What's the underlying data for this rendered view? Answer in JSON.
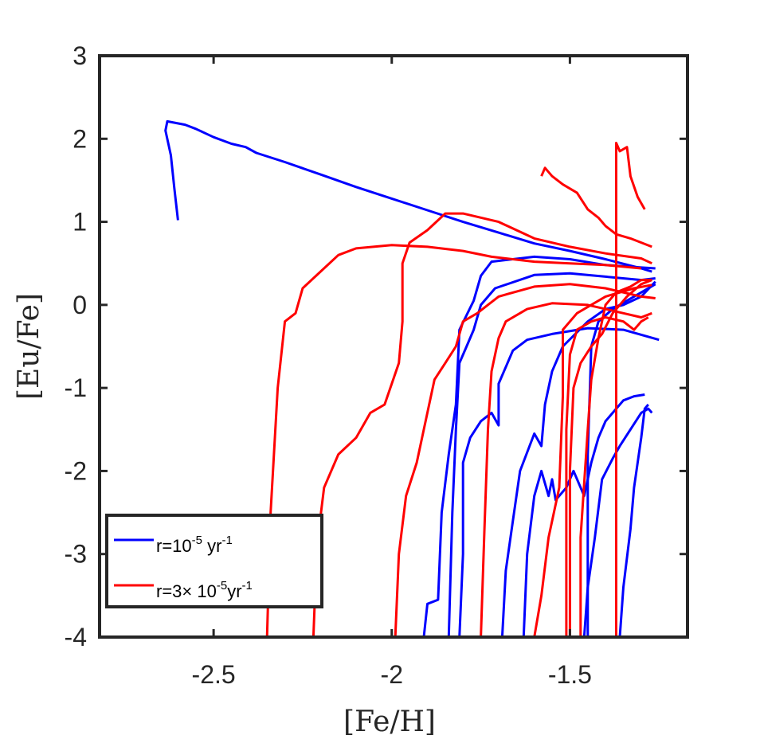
{
  "chart_data": {
    "type": "line",
    "title": "",
    "xlabel": "[Fe/H]",
    "ylabel": "[Eu/Fe]",
    "xlim": [
      -2.82,
      -1.17
    ],
    "ylim": [
      -4,
      3
    ],
    "xticks": [
      -2.5,
      -2,
      -1.5
    ],
    "xtick_labels": [
      "-2.5",
      "-2",
      "-1.5"
    ],
    "yticks": [
      -4,
      -3,
      -2,
      -1,
      0,
      1,
      2,
      3
    ],
    "ytick_labels": [
      "-4",
      "-3",
      "-2",
      "-1",
      "0",
      "1",
      "2",
      "3"
    ],
    "grid": false,
    "legend_position": "bottom-left",
    "legend": [
      {
        "base": "r=10",
        "exp1": "-5",
        "mid": " yr",
        "exp2": "-1",
        "color": "#0000ff"
      },
      {
        "base": "r=3× 10",
        "exp1": "-5",
        "mid": "yr",
        "exp2": "-1",
        "color": "#ff0000"
      }
    ],
    "series": [
      {
        "name": "r=1e-5 yr^-1",
        "color": "#0000ff",
        "tracks": [
          [
            [
              -2.6,
              1.02
            ],
            [
              -2.61,
              1.4
            ],
            [
              -2.62,
              1.8
            ],
            [
              -2.635,
              2.1
            ],
            [
              -2.63,
              2.21
            ],
            [
              -2.58,
              2.17
            ],
            [
              -2.55,
              2.12
            ],
            [
              -2.5,
              2.02
            ],
            [
              -2.45,
              1.94
            ],
            [
              -2.41,
              1.9
            ],
            [
              -2.38,
              1.83
            ],
            [
              -2.3,
              1.72
            ],
            [
              -2.2,
              1.57
            ],
            [
              -2.1,
              1.42
            ],
            [
              -2.0,
              1.28
            ],
            [
              -1.9,
              1.14
            ],
            [
              -1.8,
              1.0
            ],
            [
              -1.7,
              0.87
            ],
            [
              -1.6,
              0.74
            ],
            [
              -1.5,
              0.65
            ],
            [
              -1.4,
              0.55
            ],
            [
              -1.3,
              0.44
            ],
            [
              -1.27,
              0.4
            ]
          ],
          [
            [
              -1.91,
              -4
            ],
            [
              -1.9,
              -3.6
            ],
            [
              -1.87,
              -3.55
            ],
            [
              -1.86,
              -2.5
            ],
            [
              -1.84,
              -1.8
            ],
            [
              -1.82,
              -1.2
            ],
            [
              -1.81,
              -0.3
            ],
            [
              -1.77,
              0.05
            ],
            [
              -1.75,
              0.35
            ],
            [
              -1.72,
              0.52
            ],
            [
              -1.6,
              0.58
            ],
            [
              -1.5,
              0.55
            ],
            [
              -1.4,
              0.48
            ],
            [
              -1.3,
              0.45
            ],
            [
              -1.26,
              0.44
            ]
          ],
          [
            [
              -1.84,
              -4
            ],
            [
              -1.83,
              -2.5
            ],
            [
              -1.82,
              -1.5
            ],
            [
              -1.81,
              -0.7
            ],
            [
              -1.79,
              -0.5
            ],
            [
              -1.77,
              -0.3
            ],
            [
              -1.75,
              0.0
            ],
            [
              -1.71,
              0.2
            ],
            [
              -1.6,
              0.36
            ],
            [
              -1.5,
              0.38
            ],
            [
              -1.4,
              0.34
            ],
            [
              -1.3,
              0.3
            ],
            [
              -1.26,
              0.32
            ]
          ],
          [
            [
              -1.81,
              -4
            ],
            [
              -1.8,
              -3.0
            ],
            [
              -1.8,
              -1.9
            ],
            [
              -1.78,
              -1.6
            ],
            [
              -1.75,
              -1.4
            ],
            [
              -1.72,
              -1.3
            ],
            [
              -1.7,
              -1.45
            ],
            [
              -1.7,
              -0.95
            ],
            [
              -1.66,
              -0.55
            ],
            [
              -1.62,
              -0.42
            ],
            [
              -1.55,
              -0.35
            ],
            [
              -1.45,
              -0.28
            ],
            [
              -1.35,
              -0.3
            ],
            [
              -1.25,
              -0.42
            ]
          ],
          [
            [
              -1.69,
              -4
            ],
            [
              -1.68,
              -3.2
            ],
            [
              -1.66,
              -2.6
            ],
            [
              -1.64,
              -2.0
            ],
            [
              -1.6,
              -1.55
            ],
            [
              -1.58,
              -1.7
            ],
            [
              -1.57,
              -1.2
            ],
            [
              -1.55,
              -0.8
            ],
            [
              -1.52,
              -0.5
            ],
            [
              -1.45,
              -0.2
            ],
            [
              -1.4,
              -0.05
            ],
            [
              -1.35,
              0.0
            ],
            [
              -1.3,
              0.1
            ],
            [
              -1.26,
              0.28
            ]
          ],
          [
            [
              -1.63,
              -4
            ],
            [
              -1.62,
              -3.0
            ],
            [
              -1.6,
              -2.3
            ],
            [
              -1.58,
              -2.0
            ],
            [
              -1.56,
              -2.3
            ],
            [
              -1.55,
              -2.1
            ],
            [
              -1.54,
              -2.35
            ],
            [
              -1.51,
              -2.2
            ],
            [
              -1.49,
              -2.0
            ],
            [
              -1.46,
              -2.3
            ],
            [
              -1.44,
              -1.9
            ],
            [
              -1.42,
              -1.6
            ],
            [
              -1.4,
              -1.4
            ],
            [
              -1.38,
              -1.3
            ],
            [
              -1.35,
              -1.15
            ],
            [
              -1.32,
              -1.1
            ],
            [
              -1.29,
              -1.08
            ]
          ],
          [
            [
              -1.46,
              -4
            ],
            [
              -1.45,
              -3.4
            ],
            [
              -1.43,
              -2.8
            ],
            [
              -1.41,
              -2.1
            ],
            [
              -1.38,
              -1.85
            ],
            [
              -1.36,
              -1.7
            ],
            [
              -1.33,
              -1.5
            ],
            [
              -1.3,
              -1.3
            ],
            [
              -1.28,
              -1.25
            ],
            [
              -1.27,
              -1.3
            ]
          ],
          [
            [
              -1.36,
              -4
            ],
            [
              -1.35,
              -3.4
            ],
            [
              -1.33,
              -2.7
            ],
            [
              -1.32,
              -2.2
            ],
            [
              -1.3,
              -1.6
            ],
            [
              -1.29,
              -1.25
            ],
            [
              -1.28,
              -1.2
            ]
          ],
          [
            [
              -1.45,
              -4
            ],
            [
              -1.45,
              -1.8
            ],
            [
              -1.44,
              -0.5
            ],
            [
              -1.42,
              -0.2
            ],
            [
              -1.38,
              -0.05
            ],
            [
              -1.34,
              0.05
            ],
            [
              -1.3,
              0.15
            ],
            [
              -1.26,
              0.25
            ]
          ]
        ]
      },
      {
        "name": "r=3e-5 yr^-1",
        "color": "#ff0000",
        "tracks": [
          [
            [
              -2.35,
              -4
            ],
            [
              -2.34,
              -2.5
            ],
            [
              -2.32,
              -1.0
            ],
            [
              -2.3,
              -0.2
            ],
            [
              -2.27,
              -0.1
            ],
            [
              -2.25,
              0.2
            ],
            [
              -2.2,
              0.4
            ],
            [
              -2.15,
              0.6
            ],
            [
              -2.1,
              0.68
            ],
            [
              -2.0,
              0.72
            ],
            [
              -1.9,
              0.7
            ],
            [
              -1.8,
              0.65
            ],
            [
              -1.72,
              0.58
            ],
            [
              -1.6,
              0.52
            ],
            [
              -1.5,
              0.5
            ],
            [
              -1.4,
              0.48
            ],
            [
              -1.35,
              0.46
            ],
            [
              -1.3,
              0.44
            ]
          ],
          [
            [
              -2.22,
              -4
            ],
            [
              -2.21,
              -2.9
            ],
            [
              -2.19,
              -2.2
            ],
            [
              -2.15,
              -1.8
            ],
            [
              -2.1,
              -1.6
            ],
            [
              -2.06,
              -1.3
            ],
            [
              -2.02,
              -1.2
            ],
            [
              -1.98,
              -0.7
            ],
            [
              -1.97,
              -0.2
            ],
            [
              -1.97,
              0.5
            ],
            [
              -1.95,
              0.75
            ],
            [
              -1.9,
              0.9
            ],
            [
              -1.85,
              1.1
            ],
            [
              -1.8,
              1.1
            ],
            [
              -1.7,
              1.0
            ],
            [
              -1.6,
              0.8
            ],
            [
              -1.5,
              0.7
            ],
            [
              -1.4,
              0.62
            ],
            [
              -1.3,
              0.56
            ],
            [
              -1.27,
              0.5
            ]
          ],
          [
            [
              -1.99,
              -4
            ],
            [
              -1.98,
              -3.0
            ],
            [
              -1.96,
              -2.3
            ],
            [
              -1.93,
              -1.9
            ],
            [
              -1.91,
              -1.5
            ],
            [
              -1.88,
              -0.9
            ],
            [
              -1.85,
              -0.7
            ],
            [
              -1.82,
              -0.5
            ],
            [
              -1.8,
              -0.2
            ],
            [
              -1.76,
              -0.1
            ],
            [
              -1.7,
              0.1
            ],
            [
              -1.6,
              0.22
            ],
            [
              -1.5,
              0.25
            ],
            [
              -1.4,
              0.2
            ],
            [
              -1.3,
              0.1
            ],
            [
              -1.26,
              0.08
            ]
          ],
          [
            [
              -1.75,
              -4
            ],
            [
              -1.74,
              -2.7
            ],
            [
              -1.73,
              -1.5
            ],
            [
              -1.72,
              -0.8
            ],
            [
              -1.7,
              -0.4
            ],
            [
              -1.68,
              -0.2
            ],
            [
              -1.62,
              -0.05
            ],
            [
              -1.55,
              0.02
            ],
            [
              -1.45,
              0.0
            ],
            [
              -1.35,
              -0.1
            ],
            [
              -1.3,
              -0.15
            ],
            [
              -1.27,
              -0.1
            ]
          ],
          [
            [
              -1.6,
              -4
            ],
            [
              -1.58,
              -3.5
            ],
            [
              -1.56,
              -2.8
            ],
            [
              -1.53,
              -2.2
            ],
            [
              -1.52,
              -1.1
            ],
            [
              -1.52,
              -0.3
            ],
            [
              -1.48,
              -0.1
            ],
            [
              -1.4,
              0.1
            ],
            [
              -1.32,
              0.2
            ],
            [
              -1.27,
              0.24
            ]
          ],
          [
            [
              -1.51,
              -4
            ],
            [
              -1.51,
              -1.5
            ],
            [
              -1.5,
              -0.6
            ],
            [
              -1.48,
              -0.3
            ],
            [
              -1.44,
              -0.2
            ],
            [
              -1.4,
              -0.15
            ],
            [
              -1.35,
              -0.2
            ],
            [
              -1.32,
              -0.3
            ],
            [
              -1.3,
              -0.2
            ],
            [
              -1.28,
              -0.15
            ]
          ],
          [
            [
              -1.5,
              -4
            ],
            [
              -1.5,
              -2.0
            ],
            [
              -1.49,
              -1.0
            ],
            [
              -1.47,
              -0.7
            ],
            [
              -1.44,
              -0.5
            ],
            [
              -1.41,
              -0.35
            ],
            [
              -1.38,
              -0.1
            ],
            [
              -1.34,
              0.1
            ],
            [
              -1.3,
              0.25
            ],
            [
              -1.27,
              0.3
            ]
          ],
          [
            [
              -1.47,
              -4
            ],
            [
              -1.47,
              -2.8
            ],
            [
              -1.45,
              -1.5
            ],
            [
              -1.44,
              -0.9
            ],
            [
              -1.42,
              -0.4
            ],
            [
              -1.4,
              0.0
            ],
            [
              -1.37,
              0.15
            ],
            [
              -1.33,
              0.22
            ],
            [
              -1.3,
              0.3
            ],
            [
              -1.27,
              0.3
            ]
          ],
          [
            [
              -1.37,
              -4
            ],
            [
              -1.37,
              1.95
            ],
            [
              -1.36,
              1.85
            ],
            [
              -1.34,
              1.9
            ],
            [
              -1.33,
              1.55
            ],
            [
              -1.31,
              1.3
            ],
            [
              -1.29,
              1.15
            ]
          ],
          [
            [
              -1.58,
              1.55
            ],
            [
              -1.57,
              1.65
            ],
            [
              -1.55,
              1.55
            ],
            [
              -1.52,
              1.45
            ],
            [
              -1.48,
              1.35
            ],
            [
              -1.45,
              1.15
            ],
            [
              -1.42,
              1.05
            ],
            [
              -1.4,
              0.95
            ],
            [
              -1.37,
              0.85
            ],
            [
              -1.33,
              0.8
            ],
            [
              -1.3,
              0.75
            ],
            [
              -1.27,
              0.7
            ]
          ]
        ]
      }
    ]
  }
}
